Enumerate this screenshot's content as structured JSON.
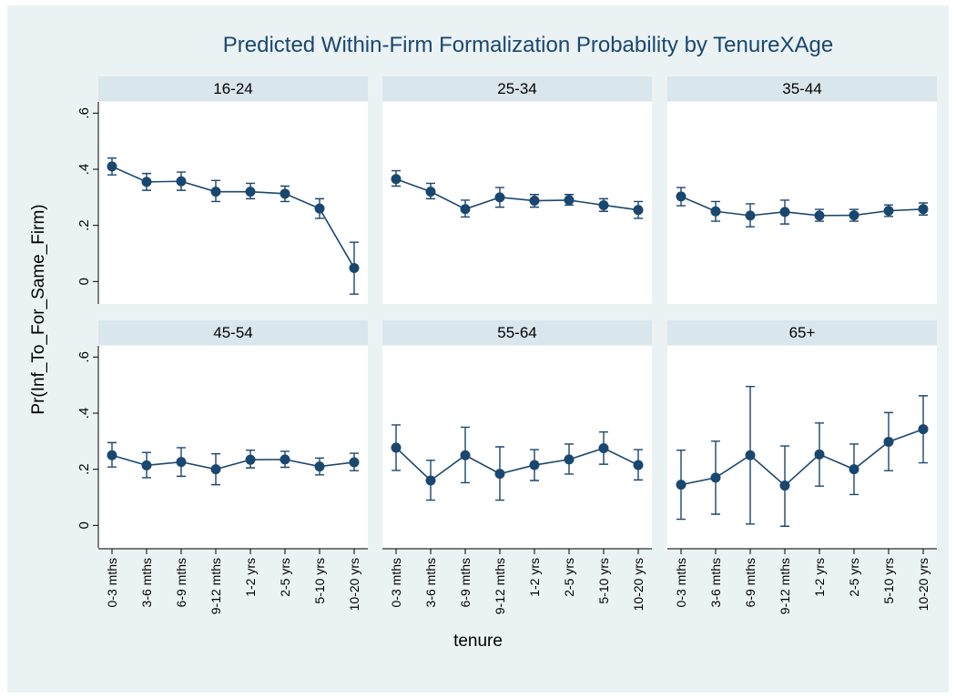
{
  "title": "Predicted Within-Firm Formalization Probability by TenureXAge",
  "y_label": "Pr(Inf_To_For_Same_Firm)",
  "x_label": "tenure",
  "categories": [
    "0-3 mths",
    "3-6 mths",
    "6-9 mths",
    "9-12 mths",
    "1-2 yrs",
    "2-5 yrs",
    "5-10 yrs",
    "10-20 yrs"
  ],
  "ylim": [
    -0.08,
    0.64
  ],
  "yticks": [
    0,
    {
      "value": 0.2,
      "label": ".2"
    },
    {
      "value": 0.4,
      "label": ".4"
    },
    {
      "value": 0.6,
      "label": ".6"
    }
  ],
  "color": "#1a476f",
  "chart_data": [
    {
      "type": "line",
      "title": "16-24",
      "values": [
        0.41,
        0.355,
        0.357,
        0.32,
        0.32,
        0.313,
        0.26,
        0.048
      ],
      "lower": [
        0.38,
        0.325,
        0.325,
        0.285,
        0.295,
        0.285,
        0.225,
        -0.045
      ],
      "upper": [
        0.44,
        0.385,
        0.39,
        0.36,
        0.35,
        0.34,
        0.295,
        0.14
      ]
    },
    {
      "type": "line",
      "title": "25-34",
      "values": [
        0.365,
        0.32,
        0.258,
        0.3,
        0.288,
        0.29,
        0.272,
        0.255
      ],
      "lower": [
        0.34,
        0.295,
        0.23,
        0.265,
        0.265,
        0.272,
        0.25,
        0.225
      ],
      "upper": [
        0.395,
        0.35,
        0.29,
        0.335,
        0.31,
        0.31,
        0.295,
        0.285
      ]
    },
    {
      "type": "line",
      "title": "35-44",
      "values": [
        0.303,
        0.25,
        0.235,
        0.248,
        0.235,
        0.236,
        0.252,
        0.258
      ],
      "lower": [
        0.27,
        0.215,
        0.195,
        0.205,
        0.215,
        0.215,
        0.232,
        0.237
      ],
      "upper": [
        0.335,
        0.285,
        0.277,
        0.29,
        0.257,
        0.257,
        0.273,
        0.28
      ]
    },
    {
      "type": "line",
      "title": "45-54",
      "values": [
        0.25,
        0.214,
        0.226,
        0.2,
        0.234,
        0.235,
        0.21,
        0.225
      ],
      "lower": [
        0.208,
        0.17,
        0.175,
        0.145,
        0.205,
        0.207,
        0.18,
        0.195
      ],
      "upper": [
        0.295,
        0.26,
        0.277,
        0.255,
        0.268,
        0.264,
        0.24,
        0.257
      ]
    },
    {
      "type": "line",
      "title": "55-64",
      "values": [
        0.277,
        0.16,
        0.25,
        0.184,
        0.215,
        0.235,
        0.275,
        0.215
      ],
      "lower": [
        0.196,
        0.09,
        0.152,
        0.09,
        0.16,
        0.183,
        0.218,
        0.162
      ],
      "upper": [
        0.358,
        0.232,
        0.35,
        0.28,
        0.27,
        0.29,
        0.333,
        0.27
      ]
    },
    {
      "type": "line",
      "title": "65+",
      "values": [
        0.145,
        0.17,
        0.25,
        0.142,
        0.253,
        0.2,
        0.298,
        0.343
      ],
      "lower": [
        0.022,
        0.04,
        0.005,
        -0.003,
        0.14,
        0.11,
        0.195,
        0.223
      ],
      "upper": [
        0.268,
        0.3,
        0.495,
        0.283,
        0.365,
        0.29,
        0.402,
        0.462
      ]
    }
  ]
}
